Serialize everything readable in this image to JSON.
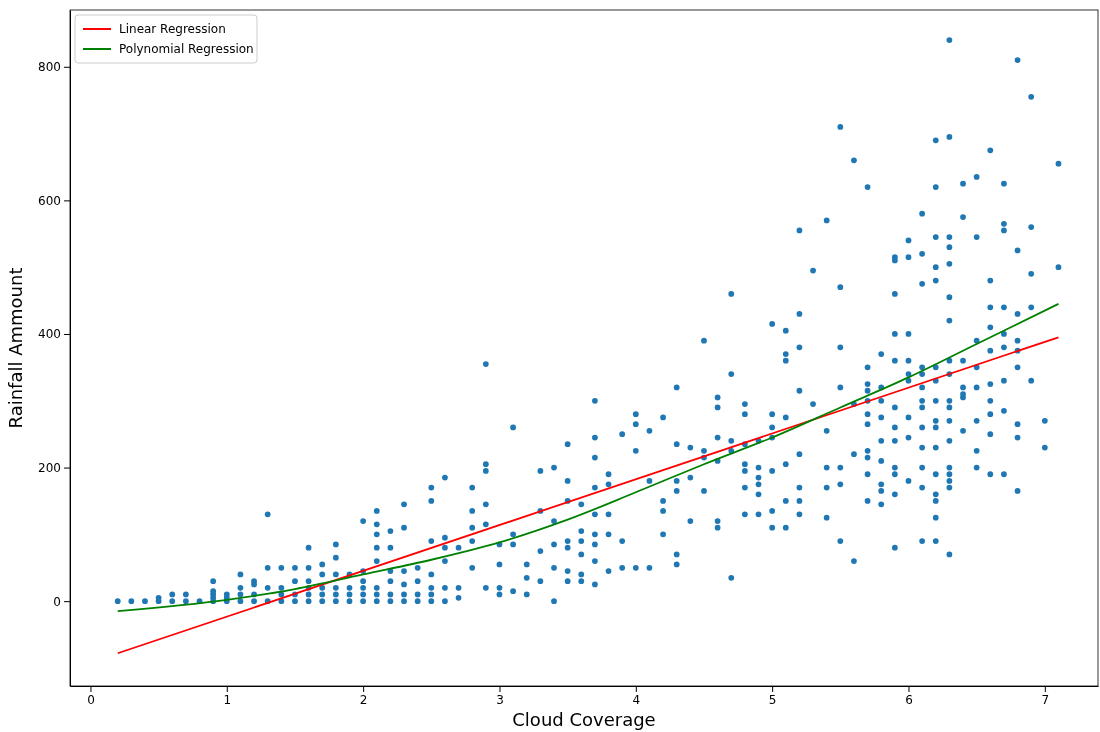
{
  "chart_data": {
    "type": "scatter",
    "xlabel": "Cloud Coverage",
    "ylabel": "Rainfall Ammount",
    "xlim": [
      -0.15,
      7.39
    ],
    "ylim": [
      -127,
      885
    ],
    "xticks": [
      0,
      1,
      2,
      3,
      4,
      5,
      6,
      7
    ],
    "yticks": [
      0,
      200,
      400,
      600,
      800
    ],
    "grid": false,
    "legend": "top left",
    "series": [
      {
        "color": "#1f77b4",
        "marker": "circle",
        "x": [
          0.2,
          0.3,
          0.4,
          0.5,
          0.5,
          0.6,
          0.6,
          0.7,
          0.7,
          0.8,
          0.9,
          0.9,
          0.9,
          0.9,
          0.9,
          1.0,
          1.0,
          1.0,
          1.1,
          1.1,
          1.1,
          1.1,
          1.2,
          1.2,
          1.2,
          1.2,
          1.3,
          1.3,
          1.3,
          1.3,
          1.4,
          1.4,
          1.4,
          1.4,
          1.5,
          1.5,
          1.5,
          1.5,
          1.6,
          1.6,
          1.6,
          1.6,
          1.6,
          1.6,
          1.7,
          1.7,
          1.7,
          1.7,
          1.7,
          1.8,
          1.8,
          1.8,
          1.8,
          1.8,
          1.8,
          1.9,
          1.9,
          1.9,
          1.9,
          2.0,
          2.0,
          2.0,
          2.0,
          2.0,
          2.0,
          2.1,
          2.1,
          2.1,
          2.1,
          2.1,
          2.1,
          2.1,
          2.1,
          2.2,
          2.2,
          2.2,
          2.2,
          2.2,
          2.2,
          2.3,
          2.3,
          2.3,
          2.3,
          2.3,
          2.3,
          2.4,
          2.4,
          2.4,
          2.4,
          2.5,
          2.5,
          2.5,
          2.5,
          2.5,
          2.5,
          2.5,
          2.6,
          2.6,
          2.6,
          2.6,
          2.6,
          2.6,
          2.7,
          2.7,
          2.7,
          2.8,
          2.8,
          2.8,
          2.8,
          2.8,
          2.9,
          2.9,
          2.9,
          2.9,
          2.9,
          2.9,
          3.0,
          3.0,
          3.0,
          3.0,
          3.1,
          3.1,
          3.1,
          3.1,
          3.2,
          3.2,
          3.2,
          3.3,
          3.3,
          3.3,
          3.3,
          3.4,
          3.4,
          3.4,
          3.4,
          3.4,
          3.5,
          3.5,
          3.5,
          3.5,
          3.5,
          3.5,
          3.5,
          3.6,
          3.6,
          3.6,
          3.6,
          3.6,
          3.6,
          3.7,
          3.7,
          3.7,
          3.7,
          3.7,
          3.7,
          3.7,
          3.7,
          3.7,
          3.8,
          3.8,
          3.8,
          3.8,
          3.8,
          3.9,
          3.9,
          3.9,
          4.0,
          4.0,
          4.0,
          4.0,
          4.1,
          4.1,
          4.1,
          4.2,
          4.2,
          4.2,
          4.2,
          4.3,
          4.3,
          4.3,
          4.3,
          4.3,
          4.3,
          4.4,
          4.4,
          4.4,
          4.5,
          4.5,
          4.5,
          4.5,
          4.6,
          4.6,
          4.6,
          4.6,
          4.6,
          4.6,
          4.7,
          4.7,
          4.7,
          4.7,
          4.7,
          4.8,
          4.8,
          4.8,
          4.8,
          4.8,
          4.8,
          4.8,
          4.9,
          4.9,
          4.9,
          4.9,
          4.9,
          4.9,
          5.0,
          5.0,
          5.0,
          5.0,
          5.0,
          5.0,
          5.0,
          5.1,
          5.1,
          5.1,
          5.1,
          5.1,
          5.1,
          5.1,
          5.2,
          5.2,
          5.2,
          5.2,
          5.2,
          5.2,
          5.2,
          5.2,
          5.3,
          5.3,
          5.4,
          5.4,
          5.4,
          5.4,
          5.4,
          5.5,
          5.5,
          5.5,
          5.5,
          5.5,
          5.5,
          5.5,
          5.6,
          5.6,
          5.6,
          5.6,
          5.7,
          5.7,
          5.7,
          5.7,
          5.7,
          5.7,
          5.7,
          5.7,
          5.7,
          5.7,
          5.7,
          5.8,
          5.8,
          5.8,
          5.8,
          5.8,
          5.8,
          5.8,
          5.8,
          5.8,
          5.9,
          5.9,
          5.9,
          5.9,
          5.9,
          5.9,
          5.9,
          5.9,
          5.9,
          5.9,
          5.9,
          5.9,
          6.0,
          6.0,
          6.0,
          6.0,
          6.0,
          6.0,
          6.0,
          6.0,
          6.0,
          6.1,
          6.1,
          6.1,
          6.1,
          6.1,
          6.1,
          6.1,
          6.1,
          6.1,
          6.1,
          6.1,
          6.1,
          6.1,
          6.2,
          6.2,
          6.2,
          6.2,
          6.2,
          6.2,
          6.2,
          6.2,
          6.2,
          6.2,
          6.2,
          6.2,
          6.2,
          6.2,
          6.2,
          6.2,
          6.3,
          6.3,
          6.3,
          6.3,
          6.3,
          6.3,
          6.3,
          6.3,
          6.3,
          6.3,
          6.3,
          6.3,
          6.3,
          6.3,
          6.3,
          6.3,
          6.3,
          6.3,
          6.4,
          6.4,
          6.4,
          6.4,
          6.4,
          6.4,
          6.4,
          6.5,
          6.5,
          6.5,
          6.5,
          6.5,
          6.5,
          6.5,
          6.5,
          6.6,
          6.6,
          6.6,
          6.6,
          6.6,
          6.6,
          6.6,
          6.6,
          6.6,
          6.6,
          6.7,
          6.7,
          6.7,
          6.7,
          6.7,
          6.7,
          6.7,
          6.7,
          6.7,
          6.8,
          6.8,
          6.8,
          6.8,
          6.8,
          6.8,
          6.8,
          6.8,
          6.8,
          6.9,
          6.9,
          6.9,
          6.9,
          6.9,
          7.0,
          7.0,
          7.1,
          7.1
        ],
        "values": [
          0,
          0,
          0,
          0,
          5,
          0,
          10,
          0,
          10,
          0,
          0,
          5,
          10,
          15,
          30,
          0,
          5,
          10,
          0,
          10,
          20,
          40,
          0,
          10,
          25,
          30,
          0,
          20,
          50,
          130,
          0,
          10,
          20,
          50,
          0,
          10,
          30,
          50,
          0,
          10,
          20,
          30,
          50,
          80,
          0,
          10,
          20,
          40,
          55,
          0,
          10,
          20,
          40,
          65,
          85,
          0,
          10,
          20,
          40,
          0,
          10,
          20,
          30,
          45,
          120,
          0,
          10,
          20,
          60,
          80,
          100,
          115,
          135,
          0,
          10,
          30,
          45,
          80,
          105,
          0,
          10,
          25,
          45,
          110,
          145,
          0,
          10,
          30,
          50,
          0,
          10,
          20,
          40,
          90,
          150,
          170,
          0,
          20,
          60,
          80,
          95,
          185,
          5,
          20,
          80,
          50,
          90,
          110,
          135,
          170,
          20,
          115,
          145,
          195,
          205,
          355,
          10,
          20,
          55,
          85,
          15,
          85,
          100,
          260,
          10,
          35,
          55,
          30,
          75,
          135,
          195,
          0,
          50,
          85,
          120,
          200,
          30,
          45,
          80,
          90,
          150,
          180,
          235,
          30,
          40,
          70,
          90,
          105,
          145,
          25,
          60,
          85,
          100,
          130,
          170,
          215,
          245,
          300,
          45,
          100,
          130,
          175,
          190,
          50,
          90,
          250,
          50,
          225,
          265,
          280,
          50,
          180,
          255,
          100,
          135,
          150,
          275,
          55,
          70,
          165,
          180,
          235,
          320,
          120,
          185,
          230,
          165,
          215,
          225,
          390,
          110,
          120,
          210,
          245,
          290,
          305,
          35,
          225,
          240,
          340,
          460,
          130,
          170,
          195,
          205,
          235,
          280,
          295,
          130,
          160,
          175,
          185,
          200,
          240,
          110,
          135,
          195,
          245,
          260,
          280,
          415,
          110,
          150,
          205,
          275,
          360,
          370,
          405,
          130,
          150,
          170,
          220,
          315,
          380,
          430,
          555,
          295,
          495,
          125,
          170,
          200,
          255,
          570,
          90,
          175,
          200,
          320,
          380,
          470,
          710,
          60,
          220,
          295,
          660,
          150,
          190,
          215,
          225,
          265,
          280,
          300,
          315,
          325,
          350,
          620,
          145,
          165,
          175,
          210,
          240,
          275,
          300,
          320,
          370,
          80,
          160,
          190,
          200,
          240,
          260,
          290,
          360,
          400,
          460,
          510,
          515,
          180,
          245,
          275,
          330,
          340,
          360,
          400,
          515,
          540,
          90,
          170,
          200,
          230,
          260,
          290,
          300,
          320,
          340,
          350,
          475,
          520,
          580,
          90,
          125,
          150,
          160,
          190,
          230,
          260,
          270,
          300,
          330,
          350,
          480,
          500,
          545,
          620,
          690,
          70,
          170,
          180,
          190,
          200,
          240,
          270,
          290,
          300,
          340,
          360,
          420,
          455,
          505,
          530,
          545,
          695,
          840,
          255,
          305,
          310,
          320,
          360,
          575,
          625,
          200,
          225,
          270,
          320,
          350,
          390,
          545,
          635,
          190,
          250,
          280,
          300,
          325,
          375,
          410,
          440,
          480,
          675,
          190,
          285,
          330,
          380,
          400,
          440,
          555,
          565,
          625,
          165,
          245,
          265,
          350,
          375,
          390,
          430,
          525,
          810,
          330,
          440,
          490,
          560,
          755,
          230,
          270,
          500,
          655
        ]
      },
      {
        "type": "line",
        "name": "Linear Regression",
        "color": "#ff0000",
        "x": [
          0.2,
          7.1
        ],
        "values": [
          -78,
          395
        ]
      },
      {
        "type": "line",
        "name": "Polynomial Regression",
        "color": "#008000",
        "x": [
          0.2,
          1,
          1.5,
          2,
          2.5,
          3,
          3.5,
          4,
          4.5,
          5,
          5.5,
          6,
          6.5,
          7.1
        ],
        "values": [
          -15,
          2,
          18,
          40,
          62,
          88,
          122,
          163,
          205,
          245,
          290,
          335,
          385,
          445
        ]
      }
    ]
  }
}
